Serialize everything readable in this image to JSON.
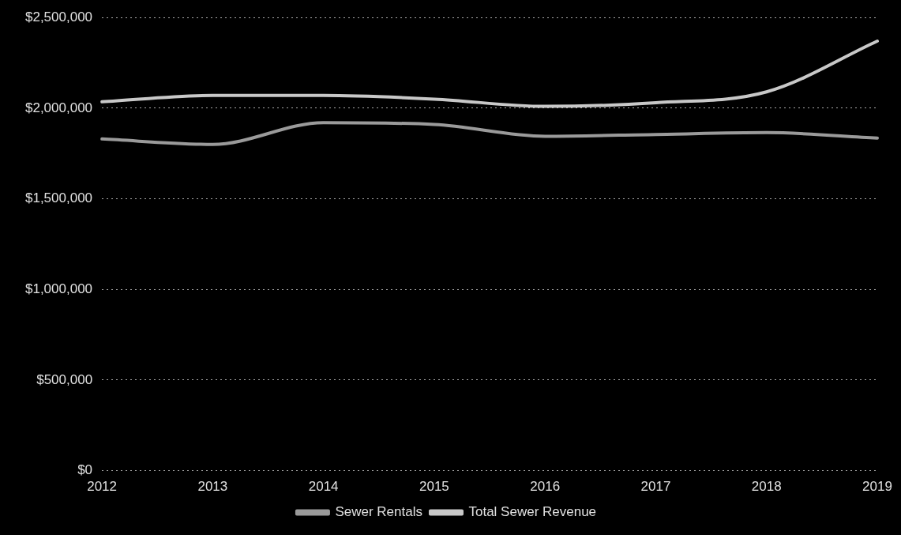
{
  "chart_data": {
    "type": "line",
    "categories": [
      "2012",
      "2013",
      "2014",
      "2015",
      "2016",
      "2017",
      "2018",
      "2019"
    ],
    "series": [
      {
        "name": "Sewer Rentals",
        "color": "#9a9a9a",
        "values": [
          1830000,
          1800000,
          1920000,
          1910000,
          1845000,
          1855000,
          1865000,
          1835000
        ]
      },
      {
        "name": "Total Sewer Revenue",
        "color": "#c8c8c8",
        "values": [
          2035000,
          2070000,
          2070000,
          2050000,
          2010000,
          2030000,
          2090000,
          2370000
        ]
      }
    ],
    "ylim": [
      0,
      2500000
    ],
    "yticks": [
      {
        "value": 0,
        "label": "$0"
      },
      {
        "value": 500000,
        "label": "$500,000"
      },
      {
        "value": 1000000,
        "label": "$1,000,000"
      },
      {
        "value": 1500000,
        "label": "$1,500,000"
      },
      {
        "value": 2000000,
        "label": "$2,000,000"
      },
      {
        "value": 2500000,
        "label": "$2,500,000"
      }
    ],
    "grid": "y",
    "legend": "bottom",
    "marker": "none",
    "line_style": "solid"
  }
}
